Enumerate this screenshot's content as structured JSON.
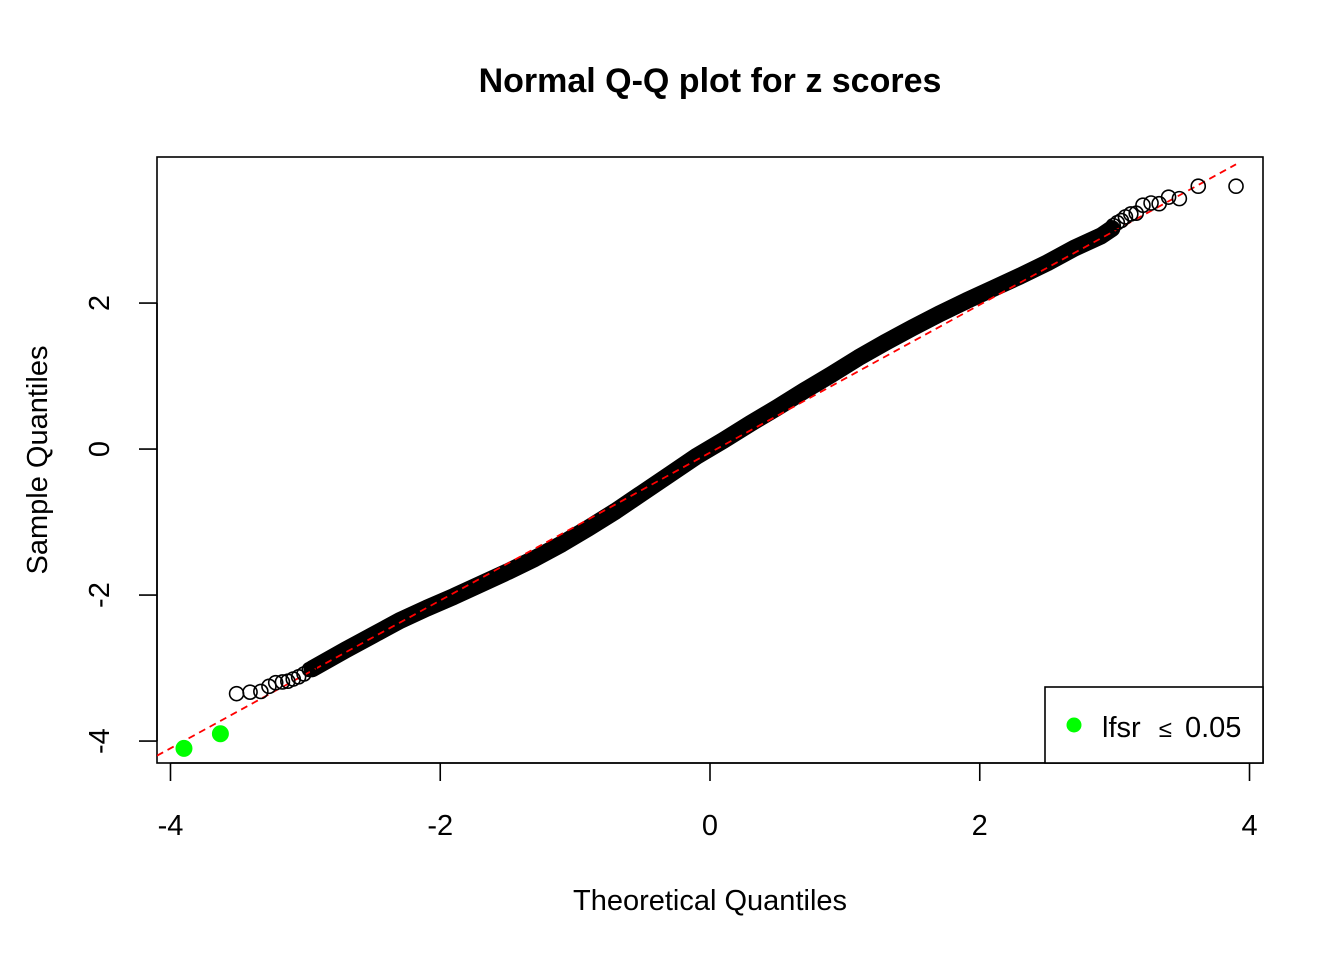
{
  "chart_data": {
    "type": "scatter",
    "title": "Normal Q-Q plot for z scores",
    "xlabel": "Theoretical Quantiles",
    "ylabel": "Sample Quantiles",
    "xlim": [
      -4.1,
      4.1
    ],
    "ylim": [
      -4.3,
      4.0
    ],
    "xticks": [
      -4,
      -2,
      0,
      2,
      4
    ],
    "xtick_labels": [
      "-4",
      "-2",
      "0",
      "2",
      "4"
    ],
    "yticks": [
      -4,
      -2,
      0,
      2
    ],
    "ytick_labels": [
      "-4",
      "-2",
      "0",
      "2"
    ],
    "grid": false,
    "reference_line": {
      "style": "dashed",
      "color": "#ff0000",
      "points": [
        [
          -4.1,
          -4.2
        ],
        [
          3.9,
          3.9
        ]
      ]
    },
    "series": [
      {
        "marker": "open-circle",
        "color": "#000000",
        "points": [
          [
            3.9,
            3.6
          ],
          [
            3.62,
            3.6
          ],
          [
            3.48,
            3.43
          ],
          [
            3.4,
            3.45
          ],
          [
            3.33,
            3.36
          ],
          [
            3.27,
            3.37
          ],
          [
            3.21,
            3.34
          ],
          [
            3.16,
            3.23
          ],
          [
            3.12,
            3.22
          ],
          [
            3.08,
            3.18
          ],
          [
            3.05,
            3.13
          ],
          [
            3.02,
            3.1
          ],
          [
            2.99,
            3.06
          ],
          [
            -3.51,
            -3.35
          ],
          [
            -3.41,
            -3.33
          ],
          [
            -3.33,
            -3.32
          ],
          [
            -3.27,
            -3.25
          ],
          [
            -3.22,
            -3.2
          ],
          [
            -3.17,
            -3.19
          ],
          [
            -3.13,
            -3.18
          ],
          [
            -3.09,
            -3.15
          ],
          [
            -3.05,
            -3.12
          ],
          [
            -3.01,
            -3.08
          ],
          [
            -2.97,
            -3.02
          ]
        ],
        "curve": [
          [
            -2.95,
            -3.01
          ],
          [
            -2.7,
            -2.75
          ],
          [
            -2.5,
            -2.55
          ],
          [
            -2.3,
            -2.35
          ],
          [
            -2.1,
            -2.18
          ],
          [
            -1.9,
            -2.02
          ],
          [
            -1.7,
            -1.85
          ],
          [
            -1.5,
            -1.68
          ],
          [
            -1.3,
            -1.5
          ],
          [
            -1.1,
            -1.3
          ],
          [
            -0.9,
            -1.08
          ],
          [
            -0.7,
            -0.85
          ],
          [
            -0.5,
            -0.6
          ],
          [
            -0.3,
            -0.35
          ],
          [
            -0.1,
            -0.1
          ],
          [
            0.1,
            0.12
          ],
          [
            0.3,
            0.35
          ],
          [
            0.5,
            0.57
          ],
          [
            0.7,
            0.8
          ],
          [
            0.9,
            1.02
          ],
          [
            1.1,
            1.25
          ],
          [
            1.3,
            1.46
          ],
          [
            1.5,
            1.66
          ],
          [
            1.7,
            1.85
          ],
          [
            1.9,
            2.03
          ],
          [
            2.1,
            2.2
          ],
          [
            2.3,
            2.37
          ],
          [
            2.5,
            2.55
          ],
          [
            2.7,
            2.75
          ],
          [
            2.9,
            2.92
          ],
          [
            2.98,
            3.02
          ]
        ]
      },
      {
        "name": "lfsr",
        "marker": "filled-circle",
        "color": "#00ff00",
        "points": [
          [
            -3.9,
            -4.1
          ],
          [
            -3.63,
            -3.9
          ]
        ]
      }
    ],
    "legend": {
      "position": "bottom-right",
      "label": "lfsr",
      "symbol": "≤",
      "value": "0.05"
    }
  }
}
